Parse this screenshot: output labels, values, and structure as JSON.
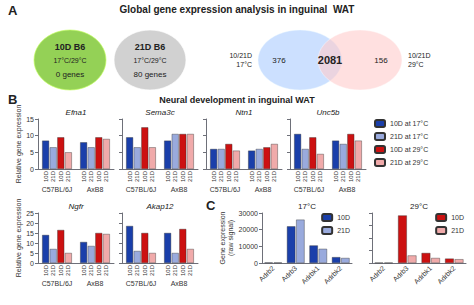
{
  "chart_data": [
    {
      "panel": "A",
      "title": "Global gene expression analysis in inguinal  WAT",
      "charts": [
        {
          "type": "set_sizes",
          "categories": [
            "10D B6",
            "21D B6"
          ],
          "subtitles": [
            "17°C/29°C",
            "17°C/29°C"
          ],
          "values": [
            0,
            80
          ],
          "value_labels": [
            "0 genes",
            "80 genes"
          ],
          "colors": [
            "#88cc44",
            "#cccccc"
          ]
        },
        {
          "type": "venn",
          "sets": [
            {
              "name": "10/21D\n17°C",
              "color": "#aaccff"
            },
            {
              "name": "10/21D\n29°C",
              "color": "#ffcccc"
            }
          ],
          "values": [
            376,
            2081,
            156
          ]
        }
      ]
    },
    {
      "panel": "B",
      "title": "Neural development in inguinal WAT",
      "bar_labels": [
        "10D",
        "21D",
        "10D",
        "21D"
      ],
      "charts": [
        {
          "type": "bar",
          "title": "Efna1",
          "categories": [
            "C57BL/6J",
            "AxB8"
          ],
          "ylabel": "Relative gene expression",
          "ylim": [
            0,
            15
          ],
          "yticks": [
            0,
            5,
            10,
            15
          ],
          "grid": false,
          "series": [
            {
              "name": "10D at 17°C",
              "color": "#1a3faa",
              "values": [
                8.5,
                8.0
              ]
            },
            {
              "name": "21D at 17°C",
              "color": "#99aadd",
              "values": [
                6.5,
                6.5
              ]
            },
            {
              "name": "10D at 29°C",
              "color": "#cc1111",
              "values": [
                9.5,
                9.5
              ]
            },
            {
              "name": "21D at 29°C",
              "color": "#f0aaaa",
              "values": [
                5.0,
                9.0
              ]
            }
          ]
        },
        {
          "type": "bar",
          "title": "Sema3c",
          "categories": [
            "C57BL/6J",
            "AxB8"
          ],
          "ylim": [
            0,
            15
          ],
          "yticks": [
            0,
            5,
            10,
            15
          ],
          "grid": false,
          "tick_labels": "x",
          "series": [
            {
              "name": "10D at 17°C",
              "color": "#1a3faa",
              "values": [
                9.5,
                8.5
              ]
            },
            {
              "name": "21D at 17°C",
              "color": "#99aadd",
              "values": [
                6.5,
                10.5
              ]
            },
            {
              "name": "10D at 29°C",
              "color": "#cc1111",
              "values": [
                12.5,
                10.5
              ]
            },
            {
              "name": "21D at 29°C",
              "color": "#f0aaaa",
              "values": [
                6.5,
                10.5
              ]
            }
          ]
        },
        {
          "type": "bar",
          "title": "Ntn1",
          "categories": [
            "C57BL/6J",
            "AxB8"
          ],
          "ylim": [
            0,
            15
          ],
          "yticks": [
            0,
            5,
            10,
            15
          ],
          "grid": false,
          "tick_labels": "x",
          "series": [
            {
              "name": "10D at 17°C",
              "color": "#1a3faa",
              "values": [
                6.0,
                5.5
              ]
            },
            {
              "name": "21D at 17°C",
              "color": "#99aadd",
              "values": [
                6.0,
                6.0
              ]
            },
            {
              "name": "10D at 29°C",
              "color": "#cc1111",
              "values": [
                7.5,
                6.5
              ]
            },
            {
              "name": "21D at 29°C",
              "color": "#f0aaaa",
              "values": [
                5.5,
                7.5
              ]
            }
          ]
        },
        {
          "type": "bar",
          "title": "Unc5b",
          "categories": [
            "C57BL/6J",
            "AxB8"
          ],
          "ylim": [
            0,
            15
          ],
          "yticks": [
            0,
            5,
            10,
            15
          ],
          "grid": false,
          "tick_labels": "x",
          "legend": "right",
          "series": [
            {
              "name": "10D at 17°C",
              "color": "#1a3faa",
              "values": [
                10.5,
                8.5
              ]
            },
            {
              "name": "21D at 17°C",
              "color": "#99aadd",
              "values": [
                6.0,
                7.5
              ]
            },
            {
              "name": "10D at 29°C",
              "color": "#cc1111",
              "values": [
                9.5,
                10.5
              ]
            },
            {
              "name": "21D at 29°C",
              "color": "#f0aaaa",
              "values": [
                4.5,
                8.5
              ]
            }
          ]
        },
        {
          "type": "bar",
          "title": "Ngfr",
          "categories": [
            "C57BL/6J",
            "AxB8"
          ],
          "ylabel": "Relative gene expression",
          "ylim": [
            0,
            25
          ],
          "yticks": [
            0,
            5,
            10,
            15,
            20,
            25
          ],
          "grid": false,
          "series": [
            {
              "name": "10D at 17°C",
              "color": "#1a3faa",
              "values": [
                14.0,
                10.5
              ]
            },
            {
              "name": "21D at 17°C",
              "color": "#99aadd",
              "values": [
                7.0,
                8.5
              ]
            },
            {
              "name": "10D at 29°C",
              "color": "#cc1111",
              "values": [
                16.5,
                15.0
              ]
            },
            {
              "name": "21D at 29°C",
              "color": "#f0aaaa",
              "values": [
                5.0,
                14.5
              ]
            }
          ]
        },
        {
          "type": "bar",
          "title": "Akap12",
          "categories": [
            "C57BL/6J",
            "AxB8"
          ],
          "ylim": [
            0,
            25
          ],
          "yticks": [
            0,
            5,
            10,
            15,
            20,
            25
          ],
          "grid": false,
          "tick_labels": "x",
          "series": [
            {
              "name": "10D at 17°C",
              "color": "#1a3faa",
              "values": [
                18.5,
                15.0
              ]
            },
            {
              "name": "21D at 17°C",
              "color": "#99aadd",
              "values": [
                6.0,
                5.0
              ]
            },
            {
              "name": "10D at 29°C",
              "color": "#cc1111",
              "values": [
                15.0,
                17.0
              ]
            },
            {
              "name": "21D at 29°C",
              "color": "#f0aaaa",
              "values": [
                5.0,
                7.0
              ]
            }
          ]
        }
      ]
    },
    {
      "panel": "C",
      "charts": [
        {
          "type": "bar",
          "title": "17°C",
          "categories": [
            "Adrb2",
            "Adrb3",
            "Adrbk1",
            "Adrbk2"
          ],
          "ylabel": "Gene expression\n(raw signal)",
          "ylim": [
            0,
            30000
          ],
          "yticks": [
            0,
            10000,
            20000,
            30000
          ],
          "grid": false,
          "legend": "upper right",
          "series": [
            {
              "name": "10D",
              "color": "#1a3faa",
              "values": [
                300,
                22000,
                10500,
                3500
              ]
            },
            {
              "name": "21D",
              "color": "#99aadd",
              "values": [
                300,
                26000,
                8500,
                3000
              ]
            }
          ]
        },
        {
          "type": "bar",
          "title": "29°C",
          "categories": [
            "Adrb2",
            "Adrb3",
            "Adrbk1",
            "Adrbk2"
          ],
          "ylim": [
            0,
            40000
          ],
          "yticks": [
            0,
            10000,
            20000,
            30000,
            40000
          ],
          "grid": false,
          "tick_labels": "x",
          "legend": "upper right",
          "series": [
            {
              "name": "10D",
              "color": "#cc1111",
              "values": [
                300,
                38000,
                8000,
                3500
              ]
            },
            {
              "name": "21D",
              "color": "#f0aaaa",
              "values": [
                300,
                6000,
                4000,
                3000
              ]
            }
          ]
        }
      ]
    }
  ]
}
